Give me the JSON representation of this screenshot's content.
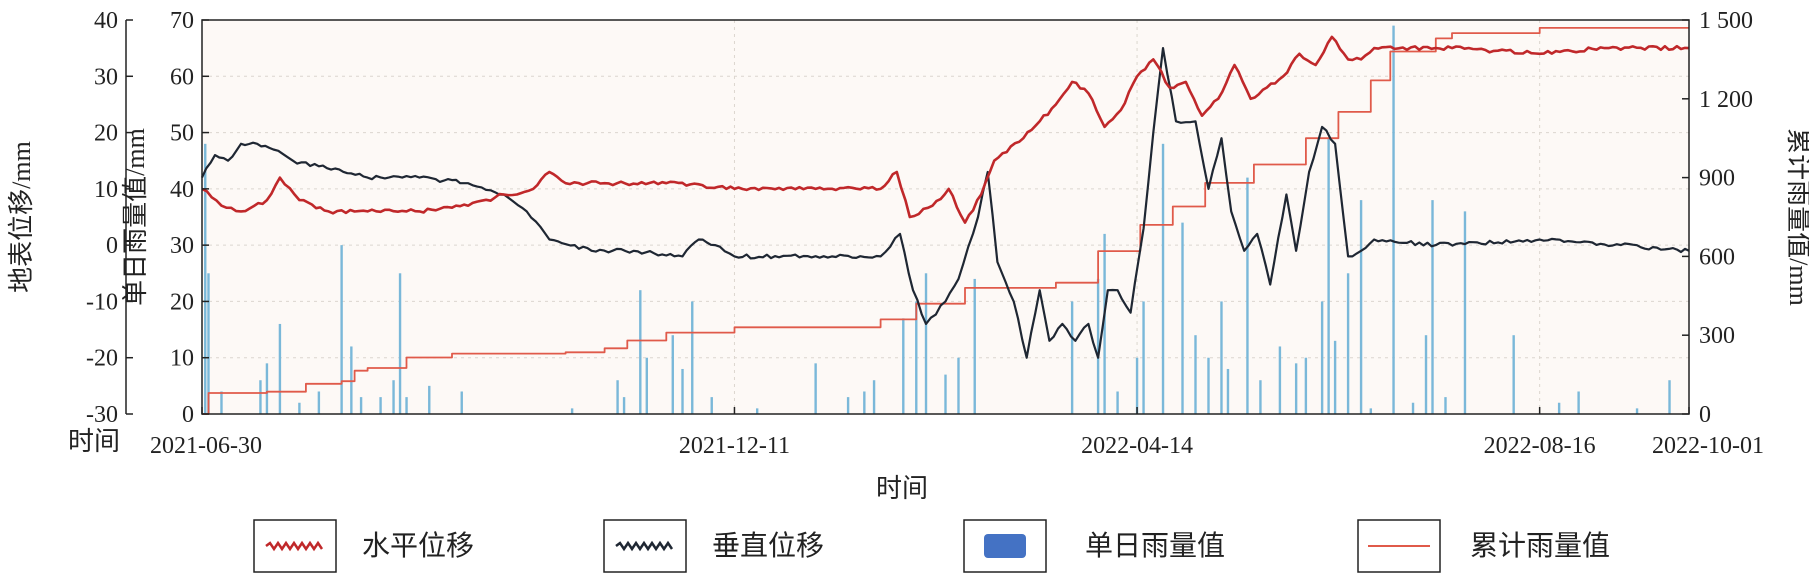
{
  "chart_data": {
    "type": "line",
    "xlabel": "时间",
    "x_corner_label": "时间",
    "x_ticks": [
      "2021-06-30",
      "2021-12-11",
      "2022-04-14",
      "2022-08-16",
      "2022-10-01"
    ],
    "xlim": [
      "2021-06-30",
      "2022-10-01"
    ],
    "y1_label": "地表位移/mm",
    "y1_ticks": [
      "40",
      "30",
      "20",
      "10",
      "0",
      "-10",
      "-20",
      "-30"
    ],
    "y1_lim": [
      -30,
      40
    ],
    "y2_label": "单日雨量值/mm",
    "y2_ticks": [
      "70",
      "60",
      "50",
      "40",
      "30",
      "20",
      "10",
      "0"
    ],
    "y2_lim": [
      0,
      70
    ],
    "y3_label": "累计雨量值/mm",
    "y3_ticks": [
      "1 500",
      "1 200",
      "900",
      "600",
      "300",
      "0"
    ],
    "y3_lim": [
      0,
      1500
    ],
    "grid": true,
    "legend_position": "bottom",
    "colors": {
      "horizontal": "#c0282a",
      "vertical": "#1f2733",
      "daily": "#7ab8d9",
      "cumulative": "#e05a4a",
      "legend_patch": "#4472c4"
    },
    "series": [
      {
        "name": "水平位移",
        "axis": "y1",
        "points": [
          [
            "2021-06-30",
            10
          ],
          [
            "2021-07-06",
            7
          ],
          [
            "2021-07-12",
            6
          ],
          [
            "2021-07-20",
            8
          ],
          [
            "2021-07-24",
            12
          ],
          [
            "2021-07-30",
            8
          ],
          [
            "2021-08-08",
            6
          ],
          [
            "2021-08-20",
            6
          ],
          [
            "2021-09-05",
            6
          ],
          [
            "2021-09-20",
            7
          ],
          [
            "2021-10-01",
            9
          ],
          [
            "2021-10-05",
            9
          ],
          [
            "2021-10-10",
            10
          ],
          [
            "2021-10-15",
            13
          ],
          [
            "2021-10-20",
            11
          ],
          [
            "2021-11-01",
            11
          ],
          [
            "2021-11-20",
            11
          ],
          [
            "2021-12-11",
            10
          ],
          [
            "2022-01-05",
            10
          ],
          [
            "2022-01-25",
            10
          ],
          [
            "2022-01-30",
            13
          ],
          [
            "2022-02-03",
            5
          ],
          [
            "2022-02-10",
            7
          ],
          [
            "2022-02-15",
            10
          ],
          [
            "2022-02-20",
            4
          ],
          [
            "2022-02-25",
            9
          ],
          [
            "2022-03-01",
            15
          ],
          [
            "2022-03-10",
            19
          ],
          [
            "2022-03-15",
            22
          ],
          [
            "2022-03-20",
            25
          ],
          [
            "2022-03-25",
            29
          ],
          [
            "2022-03-30",
            27
          ],
          [
            "2022-04-04",
            21
          ],
          [
            "2022-04-09",
            24
          ],
          [
            "2022-04-14",
            30
          ],
          [
            "2022-04-19",
            33
          ],
          [
            "2022-04-24",
            28
          ],
          [
            "2022-04-29",
            29
          ],
          [
            "2022-05-04",
            23
          ],
          [
            "2022-05-09",
            26
          ],
          [
            "2022-05-14",
            32
          ],
          [
            "2022-05-19",
            26
          ],
          [
            "2022-05-24",
            28
          ],
          [
            "2022-05-29",
            30
          ],
          [
            "2022-06-03",
            34
          ],
          [
            "2022-06-08",
            32
          ],
          [
            "2022-06-13",
            37
          ],
          [
            "2022-06-18",
            33
          ],
          [
            "2022-06-22",
            33
          ],
          [
            "2022-06-26",
            35
          ],
          [
            "2022-07-20",
            35
          ],
          [
            "2022-08-16",
            34
          ],
          [
            "2022-09-05",
            35
          ],
          [
            "2022-10-01",
            35
          ]
        ]
      },
      {
        "name": "垂直位移",
        "axis": "y1",
        "points": [
          [
            "2021-06-30",
            12
          ],
          [
            "2021-07-04",
            16
          ],
          [
            "2021-07-08",
            15
          ],
          [
            "2021-07-12",
            18
          ],
          [
            "2021-07-17",
            18
          ],
          [
            "2021-07-22",
            17
          ],
          [
            "2021-07-28",
            15
          ],
          [
            "2021-08-05",
            14
          ],
          [
            "2021-08-20",
            12
          ],
          [
            "2021-09-05",
            12
          ],
          [
            "2021-09-20",
            11
          ],
          [
            "2021-10-01",
            9
          ],
          [
            "2021-10-08",
            6
          ],
          [
            "2021-10-15",
            1
          ],
          [
            "2021-10-28",
            -1
          ],
          [
            "2021-11-10",
            -1
          ],
          [
            "2021-11-25",
            -2
          ],
          [
            "2021-11-30",
            1
          ],
          [
            "2021-12-05",
            0
          ],
          [
            "2021-12-11",
            -2
          ],
          [
            "2022-01-10",
            -2
          ],
          [
            "2022-01-25",
            -2
          ],
          [
            "2022-01-31",
            2
          ],
          [
            "2022-02-04",
            -8
          ],
          [
            "2022-02-08",
            -14
          ],
          [
            "2022-02-14",
            -10
          ],
          [
            "2022-02-18",
            -6
          ],
          [
            "2022-02-24",
            5
          ],
          [
            "2022-02-27",
            13
          ],
          [
            "2022-03-02",
            -3
          ],
          [
            "2022-03-07",
            -10
          ],
          [
            "2022-03-11",
            -20
          ],
          [
            "2022-03-15",
            -8
          ],
          [
            "2022-03-18",
            -17
          ],
          [
            "2022-03-22",
            -14
          ],
          [
            "2022-03-26",
            -17
          ],
          [
            "2022-03-30",
            -14
          ],
          [
            "2022-04-02",
            -20
          ],
          [
            "2022-04-05",
            -8
          ],
          [
            "2022-04-08",
            -8
          ],
          [
            "2022-04-12",
            -12
          ],
          [
            "2022-04-16",
            3
          ],
          [
            "2022-04-19",
            20
          ],
          [
            "2022-04-22",
            35
          ],
          [
            "2022-04-26",
            22
          ],
          [
            "2022-05-02",
            22
          ],
          [
            "2022-05-06",
            10
          ],
          [
            "2022-05-10",
            19
          ],
          [
            "2022-05-13",
            6
          ],
          [
            "2022-05-17",
            -1
          ],
          [
            "2022-05-21",
            2
          ],
          [
            "2022-05-25",
            -7
          ],
          [
            "2022-05-30",
            9
          ],
          [
            "2022-06-02",
            -1
          ],
          [
            "2022-06-06",
            13
          ],
          [
            "2022-06-10",
            21
          ],
          [
            "2022-06-14",
            18
          ],
          [
            "2022-06-18",
            -2
          ],
          [
            "2022-06-22",
            -1
          ],
          [
            "2022-06-26",
            1
          ],
          [
            "2022-07-15",
            0
          ],
          [
            "2022-08-16",
            1
          ],
          [
            "2022-09-10",
            0
          ],
          [
            "2022-10-01",
            -1
          ]
        ]
      },
      {
        "name": "累计雨量值",
        "axis": "y3",
        "points": [
          [
            "2021-06-30",
            0
          ],
          [
            "2021-07-02",
            80
          ],
          [
            "2021-07-20",
            85
          ],
          [
            "2021-08-01",
            115
          ],
          [
            "2021-08-12",
            125
          ],
          [
            "2021-08-16",
            165
          ],
          [
            "2021-08-20",
            175
          ],
          [
            "2021-09-01",
            215
          ],
          [
            "2021-09-15",
            230
          ],
          [
            "2021-10-20",
            235
          ],
          [
            "2021-11-01",
            250
          ],
          [
            "2021-11-08",
            280
          ],
          [
            "2021-11-20",
            310
          ],
          [
            "2021-12-11",
            330
          ],
          [
            "2022-01-25",
            360
          ],
          [
            "2022-02-05",
            420
          ],
          [
            "2022-02-20",
            480
          ],
          [
            "2022-03-20",
            500
          ],
          [
            "2022-04-02",
            620
          ],
          [
            "2022-04-15",
            720
          ],
          [
            "2022-04-25",
            790
          ],
          [
            "2022-05-05",
            880
          ],
          [
            "2022-05-20",
            950
          ],
          [
            "2022-06-05",
            1050
          ],
          [
            "2022-06-15",
            1150
          ],
          [
            "2022-06-25",
            1270
          ],
          [
            "2022-07-01",
            1380
          ],
          [
            "2022-07-15",
            1430
          ],
          [
            "2022-07-20",
            1450
          ],
          [
            "2022-08-16",
            1470
          ],
          [
            "2022-10-01",
            1470
          ]
        ]
      }
    ],
    "daily_rain": {
      "name": "单日雨量值",
      "axis": "y2",
      "bars": [
        [
          "2021-07-01",
          48
        ],
        [
          "2021-07-02",
          25
        ],
        [
          "2021-07-06",
          4
        ],
        [
          "2021-07-18",
          6
        ],
        [
          "2021-07-20",
          9
        ],
        [
          "2021-07-24",
          16
        ],
        [
          "2021-07-30",
          2
        ],
        [
          "2021-08-05",
          4
        ],
        [
          "2021-08-12",
          30
        ],
        [
          "2021-08-15",
          12
        ],
        [
          "2021-08-18",
          3
        ],
        [
          "2021-08-24",
          3
        ],
        [
          "2021-08-28",
          6
        ],
        [
          "2021-08-30",
          25
        ],
        [
          "2021-09-01",
          3
        ],
        [
          "2021-09-08",
          5
        ],
        [
          "2021-09-18",
          4
        ],
        [
          "2021-10-22",
          1
        ],
        [
          "2021-11-05",
          6
        ],
        [
          "2021-11-07",
          3
        ],
        [
          "2021-11-12",
          22
        ],
        [
          "2021-11-14",
          10
        ],
        [
          "2021-11-22",
          14
        ],
        [
          "2021-11-25",
          8
        ],
        [
          "2021-11-28",
          20
        ],
        [
          "2021-12-04",
          3
        ],
        [
          "2021-12-18",
          1
        ],
        [
          "2022-01-05",
          9
        ],
        [
          "2022-01-15",
          3
        ],
        [
          "2022-01-20",
          4
        ],
        [
          "2022-01-23",
          6
        ],
        [
          "2022-02-01",
          17
        ],
        [
          "2022-02-05",
          20
        ],
        [
          "2022-02-08",
          25
        ],
        [
          "2022-02-14",
          7
        ],
        [
          "2022-02-18",
          10
        ],
        [
          "2022-02-23",
          24
        ],
        [
          "2022-03-25",
          20
        ],
        [
          "2022-04-02",
          24
        ],
        [
          "2022-04-04",
          32
        ],
        [
          "2022-04-08",
          4
        ],
        [
          "2022-04-14",
          10
        ],
        [
          "2022-04-16",
          20
        ],
        [
          "2022-04-22",
          48
        ],
        [
          "2022-04-28",
          34
        ],
        [
          "2022-05-02",
          14
        ],
        [
          "2022-05-06",
          10
        ],
        [
          "2022-05-10",
          20
        ],
        [
          "2022-05-12",
          8
        ],
        [
          "2022-05-18",
          42
        ],
        [
          "2022-05-22",
          6
        ],
        [
          "2022-05-28",
          12
        ],
        [
          "2022-06-02",
          9
        ],
        [
          "2022-06-05",
          10
        ],
        [
          "2022-06-10",
          20
        ],
        [
          "2022-06-12",
          49
        ],
        [
          "2022-06-14",
          13
        ],
        [
          "2022-06-18",
          25
        ],
        [
          "2022-06-22",
          38
        ],
        [
          "2022-06-25",
          1
        ],
        [
          "2022-07-02",
          69
        ],
        [
          "2022-07-08",
          2
        ],
        [
          "2022-07-12",
          14
        ],
        [
          "2022-07-14",
          38
        ],
        [
          "2022-07-18",
          3
        ],
        [
          "2022-07-24",
          36
        ],
        [
          "2022-08-08",
          14
        ],
        [
          "2022-08-22",
          2
        ],
        [
          "2022-08-28",
          4
        ],
        [
          "2022-09-15",
          1
        ],
        [
          "2022-09-25",
          6
        ]
      ]
    },
    "legend": [
      "水平位移",
      "垂直位移",
      "单日雨量值",
      "累计雨量值"
    ]
  }
}
